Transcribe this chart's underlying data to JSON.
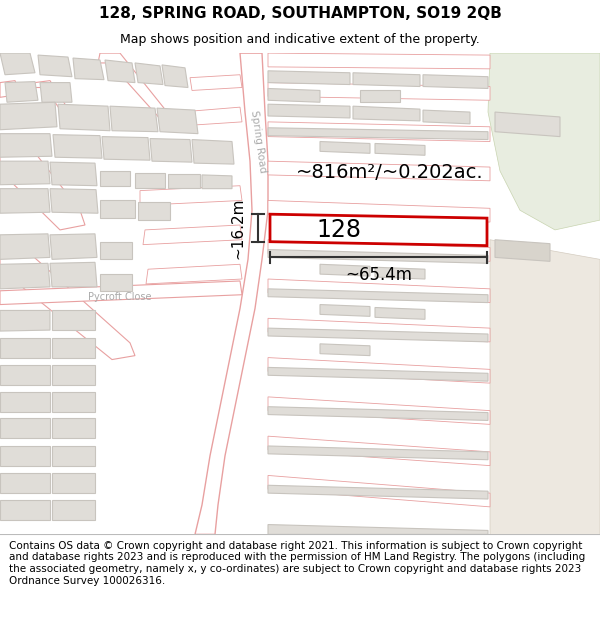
{
  "title": "128, SPRING ROAD, SOUTHAMPTON, SO19 2QB",
  "subtitle": "Map shows position and indicative extent of the property.",
  "footer": "Contains OS data © Crown copyright and database right 2021. This information is subject to Crown copyright and database rights 2023 and is reproduced with the permission of HM Land Registry. The polygons (including the associated geometry, namely x, y co-ordinates) are subject to Crown copyright and database rights 2023 Ordnance Survey 100026316.",
  "map_bg": "#ffffff",
  "road_fill": "#ffffff",
  "road_stroke": "#e8a0a0",
  "road_stroke_wide": "#d08080",
  "building_fill": "#e0ddd8",
  "building_outline": "#c8c4be",
  "green_fill": "#e8ede0",
  "green_outline": "#c8d4b0",
  "beige_fill": "#ede8e0",
  "beige_outline": "#d4ccc0",
  "highlight_color": "#cc0000",
  "highlight_fill": "white",
  "annotation_color": "#111111",
  "road_label_color": "#aaaaaa",
  "label_128": "128",
  "area_text": "~816m²/~0.202ac.",
  "width_text": "~65.4m",
  "height_text": "~16.2m",
  "road_label": "Spring Road",
  "street_label": "Pycroft Close",
  "title_fontsize": 11,
  "subtitle_fontsize": 9,
  "footer_fontsize": 7.5
}
